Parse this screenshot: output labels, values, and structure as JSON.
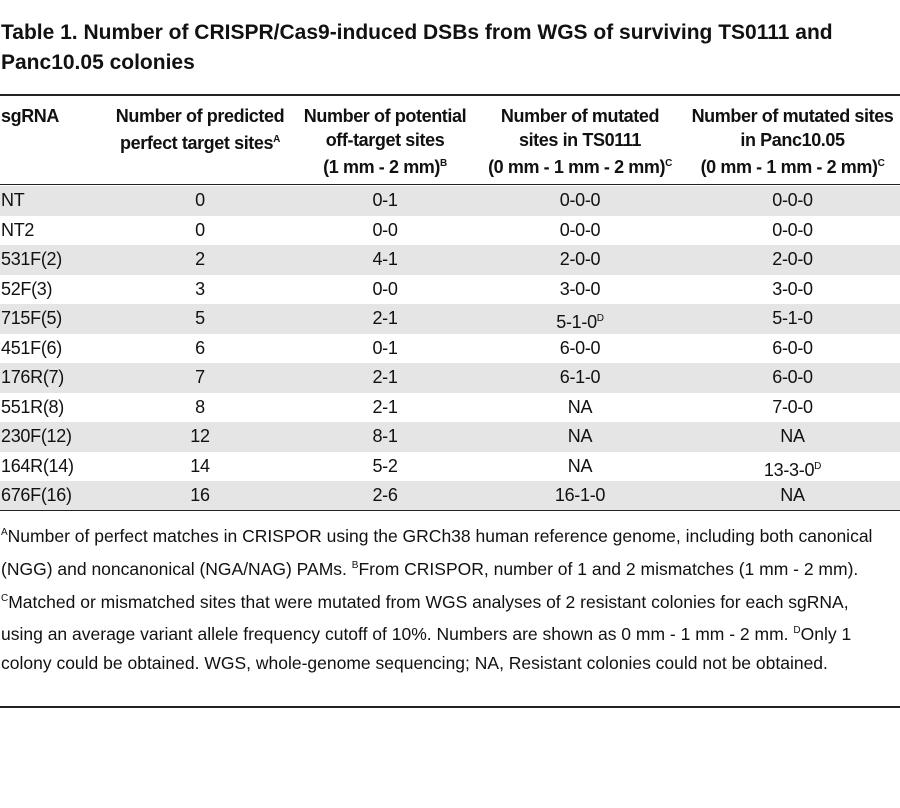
{
  "title": "Table 1. Number of CRISPR/Cas9-induced DSBs from WGS of surviving TS0111 and Panc10.05 colonies",
  "headers": [
    {
      "lines": [
        "sgRNA"
      ],
      "sup": ""
    },
    {
      "lines": [
        "Number of predicted",
        "perfect target sites"
      ],
      "sup": "A"
    },
    {
      "lines": [
        "Number of potential",
        "off-target sites",
        "(1 mm - 2 mm)"
      ],
      "sup": "B"
    },
    {
      "lines": [
        "Number of mutated",
        "sites in TS0111",
        "(0 mm - 1 mm - 2 mm)"
      ],
      "sup": "C"
    },
    {
      "lines": [
        "Number of mutated sites",
        "in Panc10.05",
        "(0 mm - 1 mm - 2 mm)"
      ],
      "sup": "C"
    }
  ],
  "rows": [
    {
      "cells": [
        "NT",
        "0",
        "0-1",
        "0-0-0",
        "0-0-0"
      ],
      "sups": [
        "",
        "",
        "",
        "",
        ""
      ]
    },
    {
      "cells": [
        "NT2",
        "0",
        "0-0",
        "0-0-0",
        "0-0-0"
      ],
      "sups": [
        "",
        "",
        "",
        "",
        ""
      ]
    },
    {
      "cells": [
        "531F(2)",
        "2",
        "4-1",
        "2-0-0",
        "2-0-0"
      ],
      "sups": [
        "",
        "",
        "",
        "",
        ""
      ]
    },
    {
      "cells": [
        "52F(3)",
        "3",
        "0-0",
        "3-0-0",
        "3-0-0"
      ],
      "sups": [
        "",
        "",
        "",
        "",
        ""
      ]
    },
    {
      "cells": [
        "715F(5)",
        "5",
        "2-1",
        "5-1-0",
        "5-1-0"
      ],
      "sups": [
        "",
        "",
        "",
        "D",
        ""
      ]
    },
    {
      "cells": [
        "451F(6)",
        "6",
        "0-1",
        "6-0-0",
        "6-0-0"
      ],
      "sups": [
        "",
        "",
        "",
        "",
        ""
      ]
    },
    {
      "cells": [
        "176R(7)",
        "7",
        "2-1",
        "6-1-0",
        "6-0-0"
      ],
      "sups": [
        "",
        "",
        "",
        "",
        ""
      ]
    },
    {
      "cells": [
        "551R(8)",
        "8",
        "2-1",
        "NA",
        "7-0-0"
      ],
      "sups": [
        "",
        "",
        "",
        "",
        ""
      ]
    },
    {
      "cells": [
        "230F(12)",
        "12",
        "8-1",
        "NA",
        "NA"
      ],
      "sups": [
        "",
        "",
        "",
        "",
        ""
      ]
    },
    {
      "cells": [
        "164R(14)",
        "14",
        "5-2",
        "NA",
        "13-3-0"
      ],
      "sups": [
        "",
        "",
        "",
        "",
        "D"
      ]
    },
    {
      "cells": [
        "676F(16)",
        "16",
        "2-6",
        "16-1-0",
        "NA"
      ],
      "sups": [
        "",
        "",
        "",
        "",
        ""
      ]
    }
  ],
  "footnotes": [
    {
      "sup": "A",
      "text": "Number of perfect matches in CRISPOR using the GRCh38 human reference genome, including both canonical (NGG) and noncanonical (NGA/NAG) PAMs. "
    },
    {
      "sup": "B",
      "text": "From CRISPOR, number of 1 and 2 mismatches (1 mm - 2 mm). "
    },
    {
      "sup": "C",
      "text": "Matched or mismatched sites that were mutated from WGS analyses of 2 resistant colonies for each sgRNA, using an average variant allele frequency cutoff of 10%. Numbers are shown as 0 mm - 1 mm - 2 mm. "
    },
    {
      "sup": "D",
      "text": "Only 1 colony could be obtained. WGS, whole-genome sequencing; NA, Resistant colonies could not be obtained."
    }
  ],
  "colors": {
    "row_shade": "#e5e5e5",
    "rule": "#222222"
  }
}
